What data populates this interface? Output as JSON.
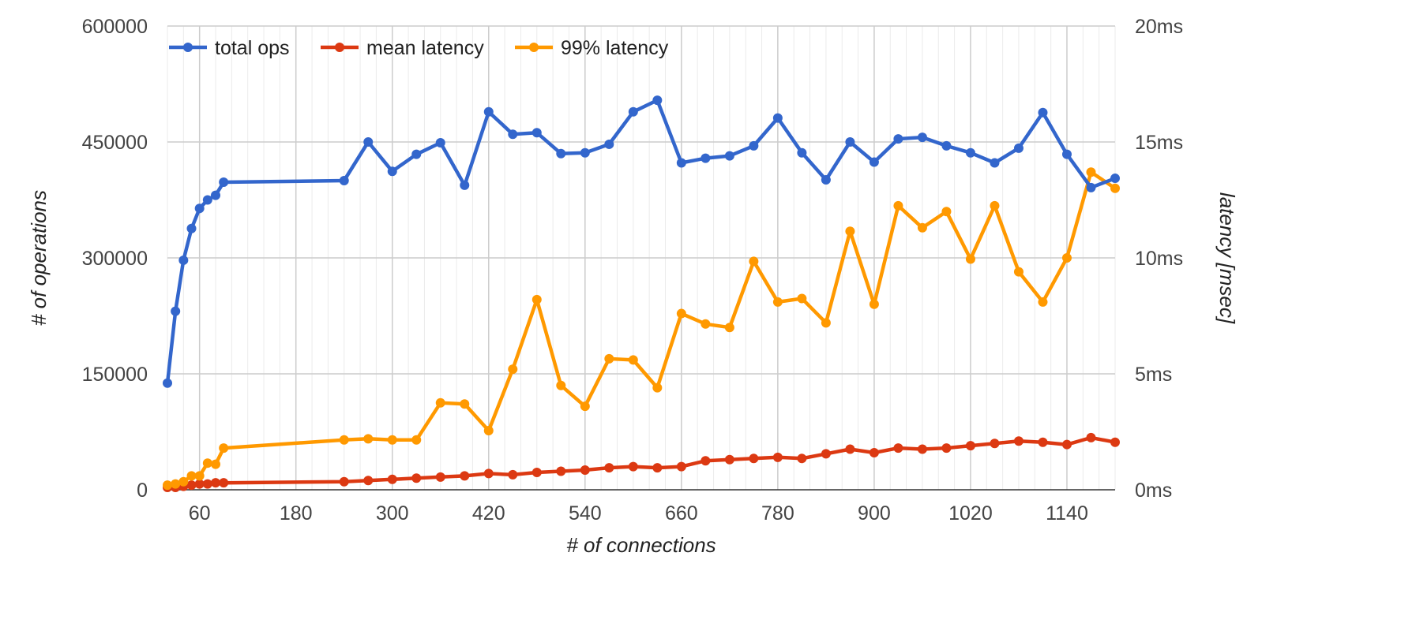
{
  "chart_data": {
    "type": "line",
    "title": "",
    "xlabel": "# of connections",
    "ylabel": "# of operations",
    "y2label": "latency [msec]",
    "xlim": [
      20,
      1200
    ],
    "ylim": [
      0,
      600000
    ],
    "y2lim": [
      0,
      20
    ],
    "x_ticks": [
      60,
      180,
      300,
      420,
      540,
      660,
      780,
      900,
      1020,
      1140
    ],
    "x_tick_labels": [
      "60",
      "180",
      "300",
      "420",
      "540",
      "660",
      "780",
      "900",
      "1020",
      "1140"
    ],
    "y_ticks": [
      0,
      150000,
      300000,
      450000,
      600000
    ],
    "y_tick_labels": [
      "0",
      "150000",
      "300000",
      "450000",
      "600000"
    ],
    "y2_ticks": [
      0,
      5,
      10,
      15,
      20
    ],
    "y2_tick_labels": [
      "0ms",
      "5ms",
      "10ms",
      "15ms",
      "20ms"
    ],
    "grid": true,
    "legend_position": "top-left",
    "x": [
      20,
      30,
      40,
      50,
      60,
      70,
      80,
      90,
      240,
      270,
      300,
      330,
      360,
      390,
      420,
      450,
      480,
      510,
      540,
      570,
      600,
      630,
      660,
      690,
      720,
      750,
      780,
      810,
      840,
      870,
      900,
      930,
      960,
      990,
      1020,
      1050,
      1080,
      1110,
      1140,
      1170,
      1200
    ],
    "series": [
      {
        "name": "total ops",
        "axis": "left",
        "color": "#3366cc",
        "values": [
          138000,
          231000,
          297000,
          338000,
          364000,
          375000,
          381000,
          398000,
          400000,
          450000,
          412000,
          434000,
          449000,
          394000,
          489000,
          460000,
          462000,
          435000,
          436000,
          447000,
          489000,
          504000,
          423000,
          429000,
          432000,
          445000,
          481000,
          436000,
          401000,
          450000,
          424000,
          454000,
          456000,
          445000,
          436000,
          423000,
          442000,
          488000,
          434000,
          391000,
          403000
        ]
      },
      {
        "name": "mean latency",
        "axis": "right",
        "color": "#dc3912",
        "values": [
          0.1,
          0.1,
          0.15,
          0.2,
          0.25,
          0.25,
          0.3,
          0.3,
          0.35,
          0.4,
          0.45,
          0.5,
          0.55,
          0.6,
          0.7,
          0.65,
          0.75,
          0.8,
          0.85,
          0.95,
          1.0,
          0.95,
          1.0,
          1.25,
          1.3,
          1.35,
          1.4,
          1.35,
          1.55,
          1.75,
          1.6,
          1.8,
          1.75,
          1.8,
          1.9,
          2.0,
          2.1,
          2.05,
          1.95,
          2.25,
          2.05
        ]
      },
      {
        "name": "99% latency",
        "axis": "right",
        "color": "#ff9900",
        "values": [
          0.2,
          0.25,
          0.35,
          0.6,
          0.6,
          1.15,
          1.1,
          1.8,
          2.15,
          2.2,
          2.15,
          2.15,
          3.75,
          3.7,
          2.55,
          5.2,
          8.2,
          4.5,
          3.6,
          5.65,
          5.6,
          4.4,
          7.6,
          7.15,
          7.0,
          9.85,
          8.1,
          8.25,
          7.2,
          11.15,
          8.0,
          12.25,
          11.3,
          12.0,
          9.95,
          12.25,
          9.4,
          8.1,
          10.0,
          13.7,
          13.0
        ]
      }
    ]
  }
}
